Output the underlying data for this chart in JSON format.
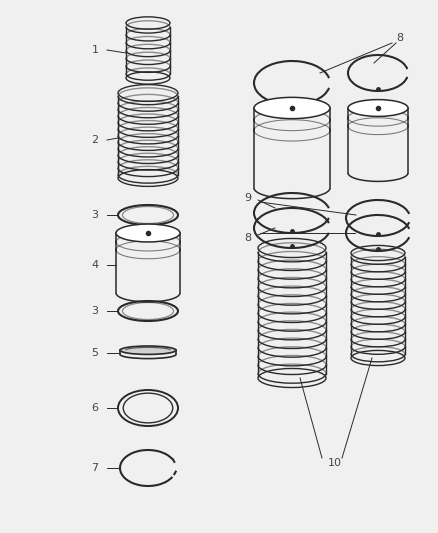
{
  "background_color": "#f0f0f0",
  "line_color": "#2a2a2a",
  "label_color": "#444444",
  "fig_width": 4.39,
  "fig_height": 5.33,
  "dpi": 100
}
